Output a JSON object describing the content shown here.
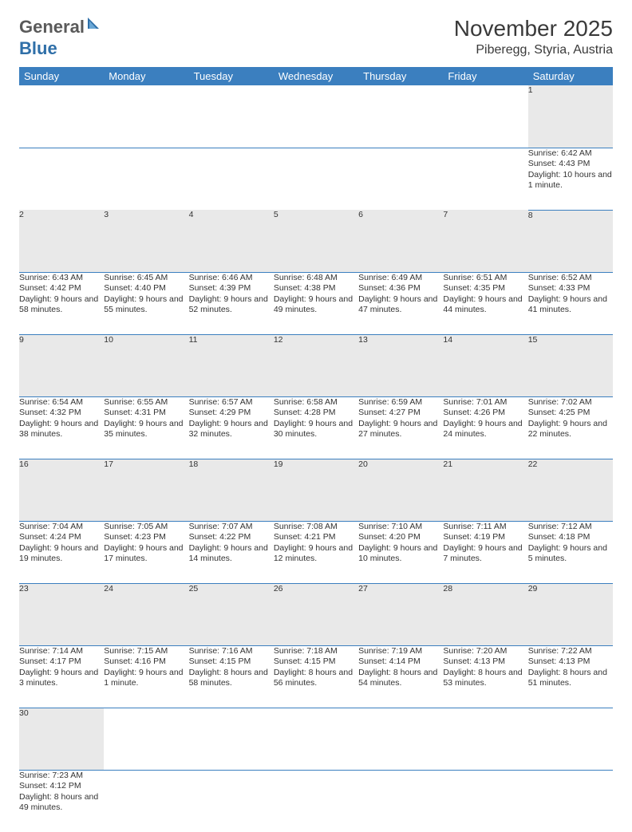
{
  "logo": {
    "part1": "General",
    "part2": "Blue"
  },
  "title": "November 2025",
  "location": "Piberegg, Styria, Austria",
  "colors": {
    "header_bg": "#3b7fbf",
    "header_fg": "#ffffff",
    "daynum_bg": "#e9e9e9",
    "rule": "#3b7fbf",
    "logo_gray": "#5a5a5a",
    "logo_blue": "#2f6fa8"
  },
  "daynames": [
    "Sunday",
    "Monday",
    "Tuesday",
    "Wednesday",
    "Thursday",
    "Friday",
    "Saturday"
  ],
  "weeks": [
    [
      null,
      null,
      null,
      null,
      null,
      null,
      {
        "n": "1",
        "sr": "Sunrise: 6:42 AM",
        "ss": "Sunset: 4:43 PM",
        "dl": "Daylight: 10 hours and 1 minute."
      }
    ],
    [
      {
        "n": "2",
        "sr": "Sunrise: 6:43 AM",
        "ss": "Sunset: 4:42 PM",
        "dl": "Daylight: 9 hours and 58 minutes."
      },
      {
        "n": "3",
        "sr": "Sunrise: 6:45 AM",
        "ss": "Sunset: 4:40 PM",
        "dl": "Daylight: 9 hours and 55 minutes."
      },
      {
        "n": "4",
        "sr": "Sunrise: 6:46 AM",
        "ss": "Sunset: 4:39 PM",
        "dl": "Daylight: 9 hours and 52 minutes."
      },
      {
        "n": "5",
        "sr": "Sunrise: 6:48 AM",
        "ss": "Sunset: 4:38 PM",
        "dl": "Daylight: 9 hours and 49 minutes."
      },
      {
        "n": "6",
        "sr": "Sunrise: 6:49 AM",
        "ss": "Sunset: 4:36 PM",
        "dl": "Daylight: 9 hours and 47 minutes."
      },
      {
        "n": "7",
        "sr": "Sunrise: 6:51 AM",
        "ss": "Sunset: 4:35 PM",
        "dl": "Daylight: 9 hours and 44 minutes."
      },
      {
        "n": "8",
        "sr": "Sunrise: 6:52 AM",
        "ss": "Sunset: 4:33 PM",
        "dl": "Daylight: 9 hours and 41 minutes."
      }
    ],
    [
      {
        "n": "9",
        "sr": "Sunrise: 6:54 AM",
        "ss": "Sunset: 4:32 PM",
        "dl": "Daylight: 9 hours and 38 minutes."
      },
      {
        "n": "10",
        "sr": "Sunrise: 6:55 AM",
        "ss": "Sunset: 4:31 PM",
        "dl": "Daylight: 9 hours and 35 minutes."
      },
      {
        "n": "11",
        "sr": "Sunrise: 6:57 AM",
        "ss": "Sunset: 4:29 PM",
        "dl": "Daylight: 9 hours and 32 minutes."
      },
      {
        "n": "12",
        "sr": "Sunrise: 6:58 AM",
        "ss": "Sunset: 4:28 PM",
        "dl": "Daylight: 9 hours and 30 minutes."
      },
      {
        "n": "13",
        "sr": "Sunrise: 6:59 AM",
        "ss": "Sunset: 4:27 PM",
        "dl": "Daylight: 9 hours and 27 minutes."
      },
      {
        "n": "14",
        "sr": "Sunrise: 7:01 AM",
        "ss": "Sunset: 4:26 PM",
        "dl": "Daylight: 9 hours and 24 minutes."
      },
      {
        "n": "15",
        "sr": "Sunrise: 7:02 AM",
        "ss": "Sunset: 4:25 PM",
        "dl": "Daylight: 9 hours and 22 minutes."
      }
    ],
    [
      {
        "n": "16",
        "sr": "Sunrise: 7:04 AM",
        "ss": "Sunset: 4:24 PM",
        "dl": "Daylight: 9 hours and 19 minutes."
      },
      {
        "n": "17",
        "sr": "Sunrise: 7:05 AM",
        "ss": "Sunset: 4:23 PM",
        "dl": "Daylight: 9 hours and 17 minutes."
      },
      {
        "n": "18",
        "sr": "Sunrise: 7:07 AM",
        "ss": "Sunset: 4:22 PM",
        "dl": "Daylight: 9 hours and 14 minutes."
      },
      {
        "n": "19",
        "sr": "Sunrise: 7:08 AM",
        "ss": "Sunset: 4:21 PM",
        "dl": "Daylight: 9 hours and 12 minutes."
      },
      {
        "n": "20",
        "sr": "Sunrise: 7:10 AM",
        "ss": "Sunset: 4:20 PM",
        "dl": "Daylight: 9 hours and 10 minutes."
      },
      {
        "n": "21",
        "sr": "Sunrise: 7:11 AM",
        "ss": "Sunset: 4:19 PM",
        "dl": "Daylight: 9 hours and 7 minutes."
      },
      {
        "n": "22",
        "sr": "Sunrise: 7:12 AM",
        "ss": "Sunset: 4:18 PM",
        "dl": "Daylight: 9 hours and 5 minutes."
      }
    ],
    [
      {
        "n": "23",
        "sr": "Sunrise: 7:14 AM",
        "ss": "Sunset: 4:17 PM",
        "dl": "Daylight: 9 hours and 3 minutes."
      },
      {
        "n": "24",
        "sr": "Sunrise: 7:15 AM",
        "ss": "Sunset: 4:16 PM",
        "dl": "Daylight: 9 hours and 1 minute."
      },
      {
        "n": "25",
        "sr": "Sunrise: 7:16 AM",
        "ss": "Sunset: 4:15 PM",
        "dl": "Daylight: 8 hours and 58 minutes."
      },
      {
        "n": "26",
        "sr": "Sunrise: 7:18 AM",
        "ss": "Sunset: 4:15 PM",
        "dl": "Daylight: 8 hours and 56 minutes."
      },
      {
        "n": "27",
        "sr": "Sunrise: 7:19 AM",
        "ss": "Sunset: 4:14 PM",
        "dl": "Daylight: 8 hours and 54 minutes."
      },
      {
        "n": "28",
        "sr": "Sunrise: 7:20 AM",
        "ss": "Sunset: 4:13 PM",
        "dl": "Daylight: 8 hours and 53 minutes."
      },
      {
        "n": "29",
        "sr": "Sunrise: 7:22 AM",
        "ss": "Sunset: 4:13 PM",
        "dl": "Daylight: 8 hours and 51 minutes."
      }
    ],
    [
      {
        "n": "30",
        "sr": "Sunrise: 7:23 AM",
        "ss": "Sunset: 4:12 PM",
        "dl": "Daylight: 8 hours and 49 minutes."
      },
      null,
      null,
      null,
      null,
      null,
      null
    ]
  ]
}
